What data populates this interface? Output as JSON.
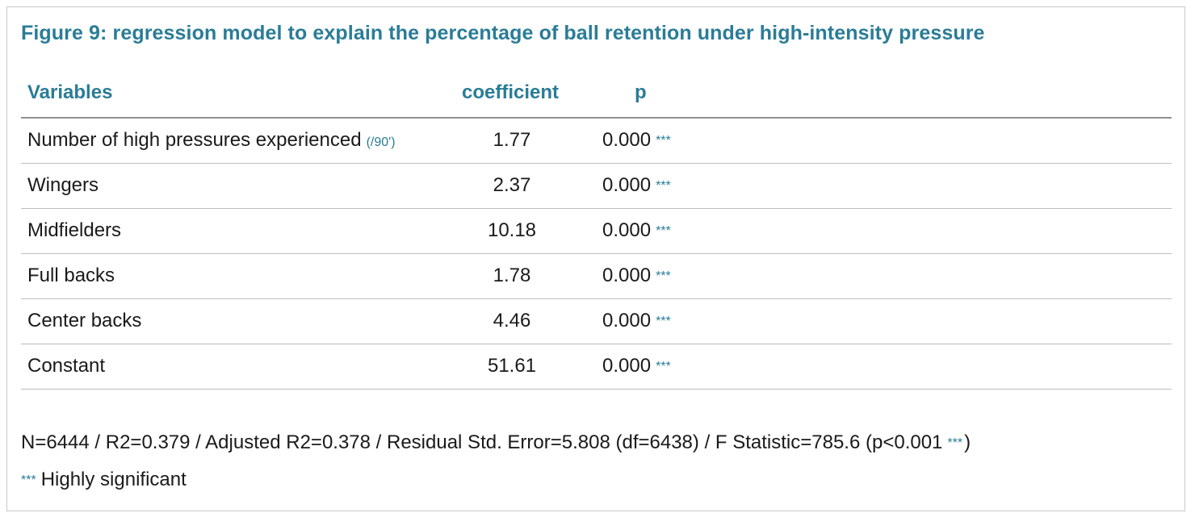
{
  "title": "Figure 9: regression model to explain the percentage of ball retention under high-intensity pressure",
  "table": {
    "headers": {
      "variables": "Variables",
      "coefficient": "coefficient",
      "p": "p"
    },
    "rows": [
      {
        "variable": "Number of high pressures experienced",
        "unit": "(/90')",
        "coefficient": "1.77",
        "p": "0.000",
        "stars": "***"
      },
      {
        "variable": "Wingers",
        "unit": "",
        "coefficient": "2.37",
        "p": "0.000",
        "stars": "***"
      },
      {
        "variable": "Midfielders",
        "unit": "",
        "coefficient": "10.18",
        "p": "0.000",
        "stars": "***"
      },
      {
        "variable": "Full backs",
        "unit": "",
        "coefficient": "1.78",
        "p": "0.000",
        "stars": "***"
      },
      {
        "variable": "Center backs",
        "unit": "",
        "coefficient": "4.46",
        "p": "0.000",
        "stars": "***"
      },
      {
        "variable": "Constant",
        "unit": "",
        "coefficient": "51.61",
        "p": "0.000",
        "stars": "***"
      }
    ]
  },
  "footer": {
    "stats_text": "N=6444 / R2=0.379 / Adjusted R2=0.378 / Residual Std. Error=5.808 (df=6438) / F Statistic=785.6 (p<0.001",
    "stats_stars": "***",
    "stats_close": ")",
    "legend_stars": "***",
    "legend_text": "Highly significant"
  },
  "colors": {
    "accent": "#2a7c97",
    "text": "#1a1a1a",
    "border": "#c9c9c9"
  }
}
